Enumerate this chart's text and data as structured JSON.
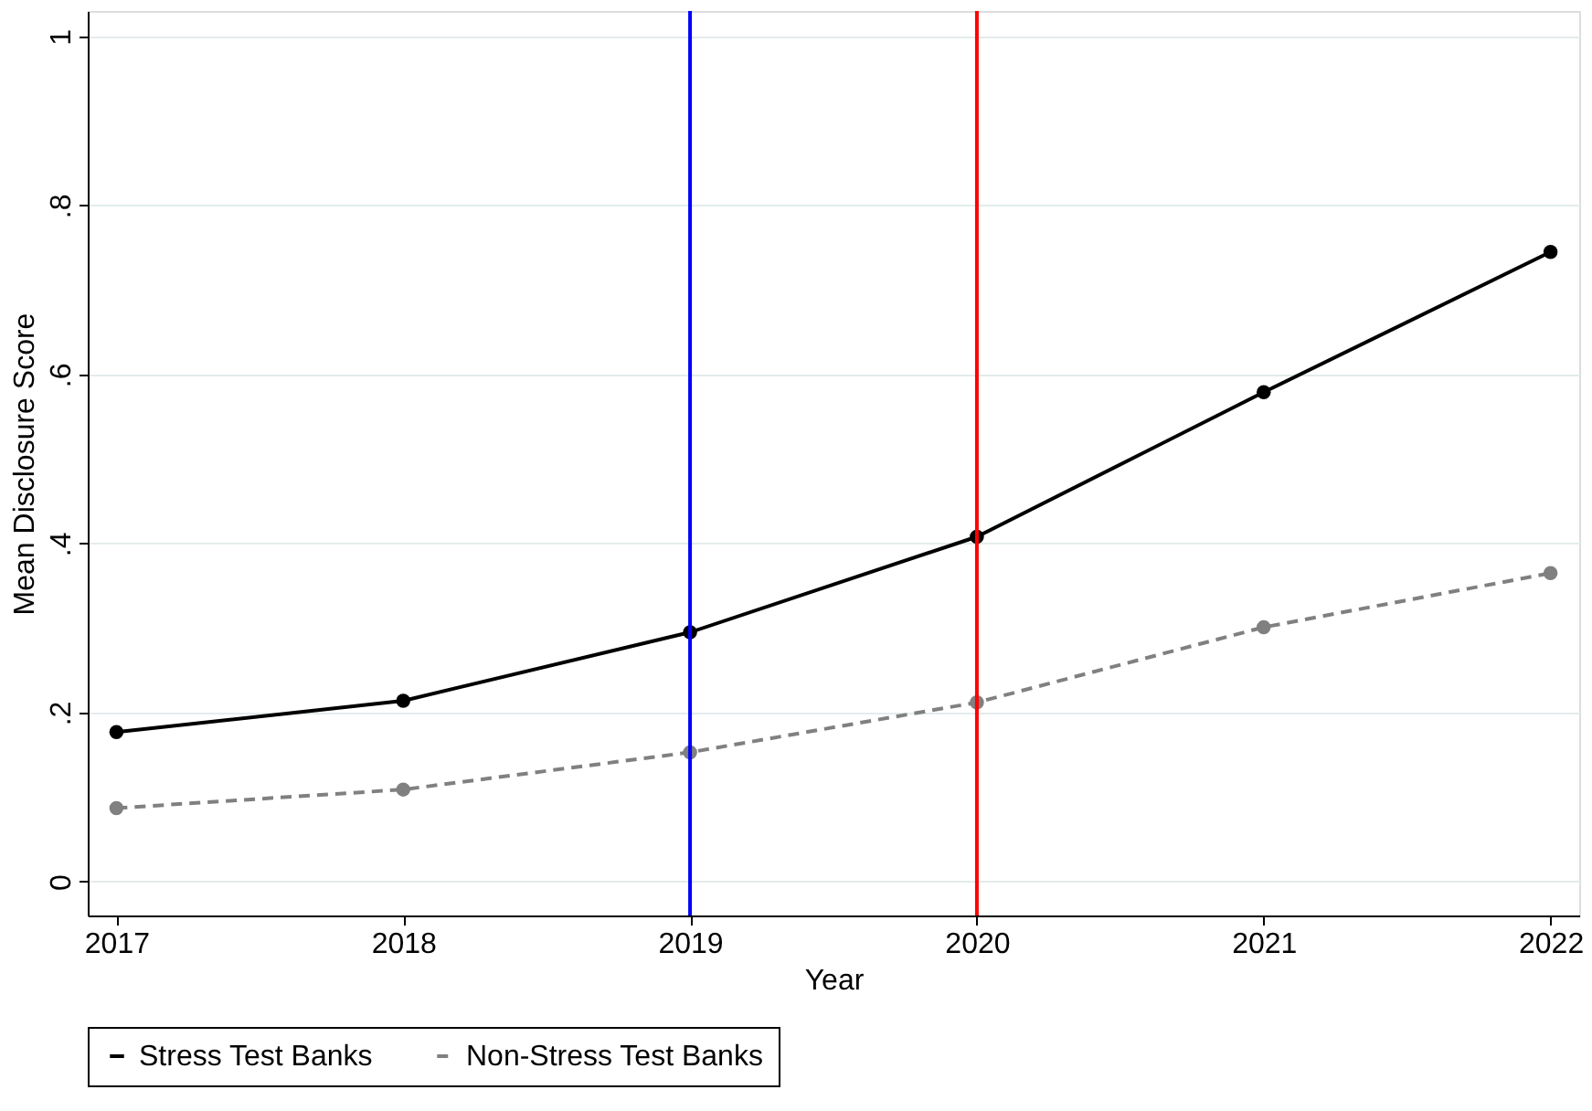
{
  "chart_data": {
    "type": "line",
    "xlabel": "Year",
    "ylabel": "Mean Disclosure Score",
    "x": [
      2017,
      2018,
      2019,
      2020,
      2021,
      2022
    ],
    "series": [
      {
        "name": "Stress Test Banks",
        "color": "#000000",
        "line_style": "solid",
        "values": [
          0.177,
          0.214,
          0.295,
          0.408,
          0.579,
          0.745
        ]
      },
      {
        "name": "Non-Stress Test Banks",
        "color": "#808080",
        "line_style": "dashed",
        "values": [
          0.087,
          0.109,
          0.153,
          0.212,
          0.301,
          0.365
        ]
      }
    ],
    "marker": "circle",
    "xlim": [
      2016.9,
      2022.1
    ],
    "xticks": [
      2017,
      2018,
      2019,
      2020,
      2021,
      2022
    ],
    "ylim": [
      -0.04,
      1.03
    ],
    "yticks": [
      {
        "value": 0,
        "label": "0"
      },
      {
        "value": 0.2,
        "label": ".2"
      },
      {
        "value": 0.4,
        "label": ".4"
      },
      {
        "value": 0.6,
        "label": ".6"
      },
      {
        "value": 0.8,
        "label": ".8"
      },
      {
        "value": 1,
        "label": "1"
      }
    ],
    "ref_lines": [
      {
        "axis": "x",
        "value": 2019,
        "color": "#0000ff"
      },
      {
        "axis": "x",
        "value": 2020,
        "color": "#ff0000"
      }
    ],
    "grid": "y",
    "legend": "bottom"
  }
}
